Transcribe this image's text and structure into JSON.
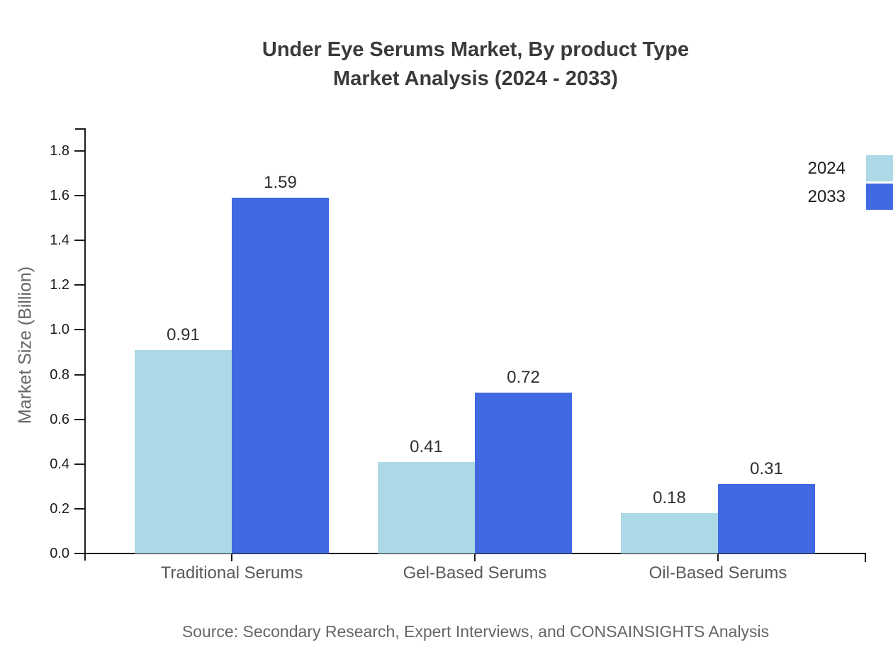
{
  "title": {
    "line1": "Under Eye Serums Market, By product Type",
    "line2": "Market Analysis (2024 - 2033)"
  },
  "chart_data": {
    "type": "bar",
    "title": "Under Eye Serums Market, By product Type — Market Analysis (2024 - 2033)",
    "categories": [
      "Traditional Serums",
      "Gel-Based Serums",
      "Oil-Based Serums"
    ],
    "series": [
      {
        "name": "2024",
        "color": "#add8e6",
        "values": [
          0.91,
          0.41,
          0.18
        ]
      },
      {
        "name": "2033",
        "color": "#4169e1",
        "values": [
          1.59,
          0.72,
          0.31
        ]
      }
    ],
    "xlabel": "",
    "ylabel": "Market Size (Billion)",
    "ylim": [
      0,
      1.9
    ],
    "yticks": [
      0.0,
      0.2,
      0.4,
      0.6,
      0.8,
      1.0,
      1.2,
      1.4,
      1.6,
      1.8
    ],
    "grid": false,
    "legend_position": "top-right",
    "value_labels": true
  },
  "source_note": "Source: Secondary Research, Expert Interviews, and CONSAINSIGHTS Analysis",
  "colors": {
    "series_2024": "#add8e6",
    "series_2033": "#4169e1",
    "axis": "#1c1c1c",
    "title_text": "#3a3a3a",
    "category_text": "#595959",
    "muted_text": "#666666"
  }
}
